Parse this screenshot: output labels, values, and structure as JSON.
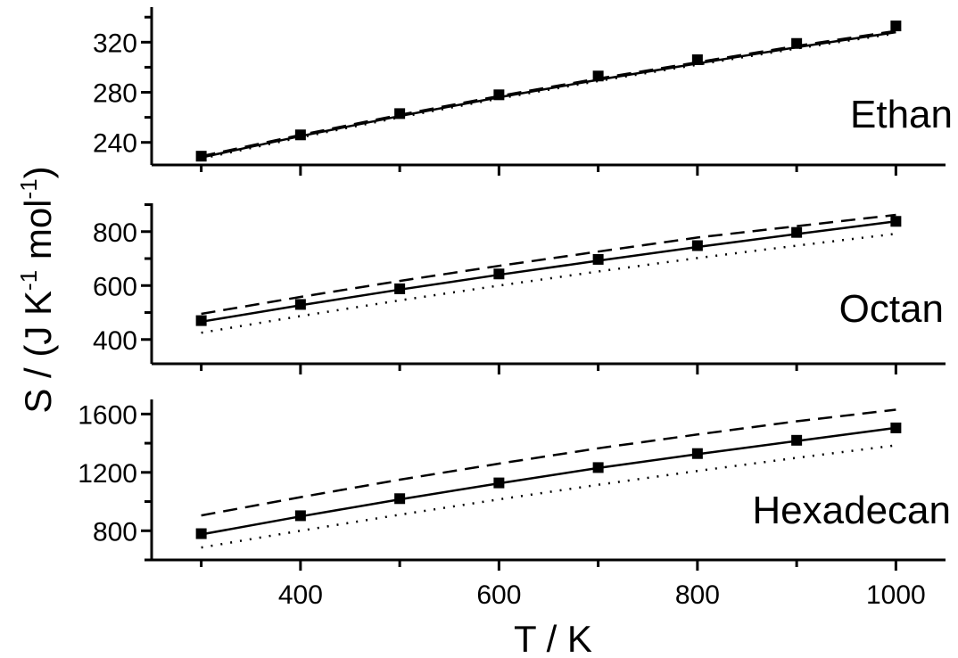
{
  "chart_data": {
    "type": "line",
    "xlabel": "T / K",
    "ylabel_parts": {
      "prefix": "S / (J K",
      "sup1": "-1",
      "middle": " mol",
      "sup2": "-1",
      "suffix": ")"
    },
    "x_ticks": [
      400,
      600,
      800,
      1000
    ],
    "xlim": [
      250,
      1050
    ],
    "x": [
      300,
      400,
      500,
      600,
      700,
      800,
      900,
      1000
    ],
    "panels": [
      {
        "label": "Ethan",
        "ylim": [
          222,
          348
        ],
        "y_ticks": [
          240,
          280,
          320
        ],
        "series": [
          {
            "style": "markers",
            "values": [
              229,
              246,
              263,
              278,
              293,
              306,
              319,
              333
            ]
          },
          {
            "style": "solid",
            "values": [
              228,
              245,
              261,
              276,
              290,
              303,
              316,
              328
            ]
          },
          {
            "style": "dashed",
            "values": [
              229,
              246,
              262,
              277,
              291,
              304,
              317,
              329
            ]
          },
          {
            "style": "dotted",
            "values": [
              227,
              244,
              260,
              275,
              289,
              302,
              315,
              327
            ]
          }
        ]
      },
      {
        "label": "Octan",
        "ylim": [
          310,
          905
        ],
        "y_ticks": [
          400,
          600,
          800
        ],
        "series": [
          {
            "style": "markers",
            "values": [
              470,
              530,
              588,
              643,
              697,
              748,
              797,
              838
            ]
          },
          {
            "style": "solid",
            "values": [
              466,
              527,
              585,
              640,
              692,
              743,
              791,
              838
            ]
          },
          {
            "style": "dashed",
            "values": [
              495,
              558,
              617,
              673,
              726,
              778,
              820,
              862
            ]
          },
          {
            "style": "dotted",
            "values": [
              425,
              487,
              545,
              600,
              652,
              702,
              748,
              792
            ]
          }
        ]
      },
      {
        "label": "Hexadecan",
        "ylim": [
          600,
          1700
        ],
        "y_ticks": [
          800,
          1200,
          1600
        ],
        "series": [
          {
            "style": "markers",
            "values": [
              780,
              903,
              1020,
              1128,
              1233,
              1329,
              1420,
              1505
            ]
          },
          {
            "style": "solid",
            "values": [
              775,
              898,
              1015,
              1125,
              1230,
              1325,
              1415,
              1505
            ]
          },
          {
            "style": "dashed",
            "values": [
              905,
              1030,
              1150,
              1260,
              1365,
              1460,
              1550,
              1630
            ]
          },
          {
            "style": "dotted",
            "values": [
              685,
              800,
              910,
              1015,
              1115,
              1210,
              1300,
              1385
            ]
          }
        ]
      }
    ]
  }
}
